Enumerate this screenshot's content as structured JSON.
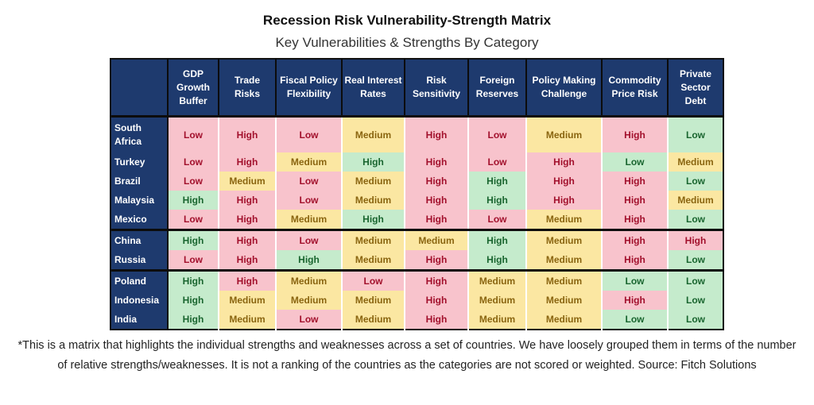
{
  "title": "Recession Risk Vulnerability-Strength Matrix",
  "subtitle": "Key Vulnerabilities & Strengths By Category",
  "footnote": "*This is a matrix that highlights the individual strengths and weaknesses across a set of countries. We have loosely grouped them in terms of the number of relative strengths/weaknesses. It is not a ranking of the countries as the categories are not scored or weighted. Source: Fitch Solutions",
  "colors": {
    "header_bg": "#1e3a6e",
    "vulnerability_bg": "#f8c3cc",
    "vulnerability_text": "#a2102c",
    "strength_bg": "#c5ebcc",
    "strength_text": "#19652f",
    "medium_bg": "#fbe7a2",
    "medium_text": "#8a6510"
  },
  "chart_data": {
    "type": "table",
    "title": "Recession Risk Vulnerability-Strength Matrix",
    "subtitle": "Key Vulnerabilities & Strengths By Category",
    "columns": [
      "GDP Growth Buffer",
      "Trade Risks",
      "Fiscal Policy Flexibility",
      "Real Interest Rates",
      "Risk Sensitivity",
      "Foreign Reserves",
      "Policy Making Challenge",
      "Commodity Price Risk",
      "Private Sector Debt"
    ],
    "risk_columns": [
      1,
      4,
      6,
      7,
      8
    ],
    "groups": [
      {
        "rows": [
          {
            "country": "South Africa",
            "values": [
              "Low",
              "High",
              "Low",
              "Medium",
              "High",
              "Low",
              "Medium",
              "High",
              "Low"
            ]
          },
          {
            "country": "Turkey",
            "values": [
              "Low",
              "High",
              "Medium",
              "High",
              "High",
              "Low",
              "High",
              "Low",
              "Medium"
            ]
          },
          {
            "country": "Brazil",
            "values": [
              "Low",
              "Medium",
              "Low",
              "Medium",
              "High",
              "High",
              "High",
              "High",
              "Low"
            ]
          },
          {
            "country": "Malaysia",
            "values": [
              "High",
              "High",
              "Low",
              "Medium",
              "High",
              "High",
              "High",
              "High",
              "Medium"
            ]
          },
          {
            "country": "Mexico",
            "values": [
              "Low",
              "High",
              "Medium",
              "High",
              "High",
              "Low",
              "Medium",
              "High",
              "Low"
            ]
          }
        ]
      },
      {
        "rows": [
          {
            "country": "China",
            "values": [
              "High",
              "High",
              "Low",
              "Medium",
              "Medium",
              "High",
              "Medium",
              "High",
              "High"
            ]
          },
          {
            "country": "Russia",
            "values": [
              "Low",
              "High",
              "High",
              "Medium",
              "High",
              "High",
              "Medium",
              "High",
              "Low"
            ]
          }
        ]
      },
      {
        "rows": [
          {
            "country": "Poland",
            "values": [
              "High",
              "High",
              "Medium",
              "Low",
              "High",
              "Medium",
              "Medium",
              "Low",
              "Low"
            ]
          },
          {
            "country": "Indonesia",
            "values": [
              "High",
              "Medium",
              "Medium",
              "Medium",
              "High",
              "Medium",
              "Medium",
              "High",
              "Low"
            ]
          },
          {
            "country": "India",
            "values": [
              "High",
              "Medium",
              "Low",
              "Medium",
              "High",
              "Medium",
              "Medium",
              "Low",
              "Low"
            ]
          }
        ]
      }
    ]
  }
}
